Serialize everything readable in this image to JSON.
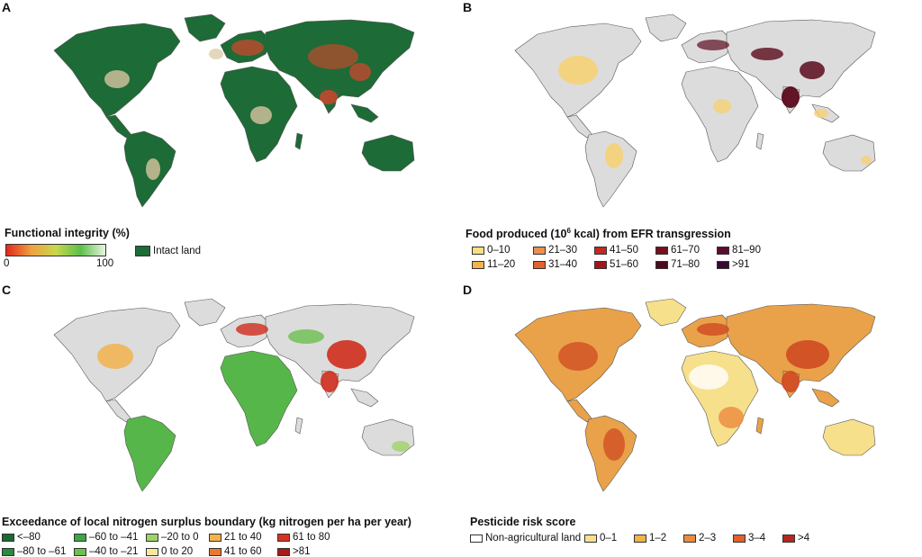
{
  "panels": [
    {
      "letter": "A",
      "legend_title": "Functional integrity (%)",
      "gradient_min": "0",
      "gradient_max": "100",
      "intact_label": "Intact land",
      "colors": {
        "land": "#1d6b36",
        "accent": "#d8442c",
        "light": "#d8c6a0",
        "ocean": "#ffffff"
      }
    },
    {
      "letter": "B",
      "legend_title_pre": "Food produced (10",
      "legend_title_sup": "6",
      "legend_title_post": " kcal) from EFR transgression",
      "items": [
        {
          "label": "0–10",
          "color": "#f9df82"
        },
        {
          "label": "11–20",
          "color": "#f2b24c"
        },
        {
          "label": "21–30",
          "color": "#ee8f4d"
        },
        {
          "label": "31–40",
          "color": "#e2612e"
        },
        {
          "label": "41–50",
          "color": "#c22a1f"
        },
        {
          "label": "51–60",
          "color": "#a0171b"
        },
        {
          "label": "61–70",
          "color": "#7a0e1d"
        },
        {
          "label": "71–80",
          "color": "#4c0a1d"
        },
        {
          "label": "81–90",
          "color": "#5e0b30"
        },
        {
          "label": ">91",
          "color": "#3a0733"
        }
      ],
      "colors": {
        "land": "#dcdcdc",
        "hot": "#5b0a1c",
        "warm": "#f6d175"
      }
    },
    {
      "letter": "C",
      "legend_title": "Exceedance of local nitrogen surplus boundary (kg nitrogen per ha per year)",
      "items": [
        {
          "label": "<–80",
          "color": "#1b6a33"
        },
        {
          "label": "–80 to –61",
          "color": "#2a8a3d"
        },
        {
          "label": "–60 to –41",
          "color": "#3ea447"
        },
        {
          "label": "–40 to –21",
          "color": "#6dbf4f"
        },
        {
          "label": "–20 to 0",
          "color": "#9fd36a"
        },
        {
          "label": "0 to 20",
          "color": "#f9e79a"
        },
        {
          "label": "21 to 40",
          "color": "#f2b24c"
        },
        {
          "label": "41 to 60",
          "color": "#e8792f"
        },
        {
          "label": "61 to 80",
          "color": "#d8331f"
        },
        {
          "label": ">81",
          "color": "#a71b1b"
        }
      ],
      "colors": {
        "land": "#dcdcdc",
        "green": "#57b64a",
        "red": "#cf2d1d"
      }
    },
    {
      "letter": "D",
      "legend_title": "Pesticide risk score",
      "items": [
        {
          "label": "Non-agricultural land",
          "color": "#ffffff"
        },
        {
          "label": "0–1",
          "color": "#f7e08c"
        },
        {
          "label": "1–2",
          "color": "#f2b24c"
        },
        {
          "label": "2–3",
          "color": "#ec8a3e"
        },
        {
          "label": "3–4",
          "color": "#e0612c"
        },
        {
          "label": ">4",
          "color": "#b3281f"
        }
      ],
      "colors": {
        "land": "#e9a24a",
        "red": "#cf4a22",
        "light": "#f7e08c"
      }
    }
  ]
}
